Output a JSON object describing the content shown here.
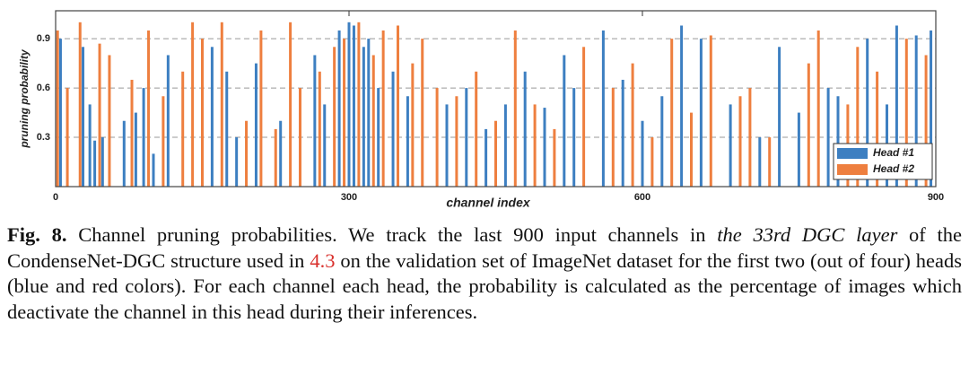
{
  "chart_data": {
    "type": "bar",
    "xlabel": "channel index",
    "ylabel": "pruning probability",
    "xlim": [
      0,
      900
    ],
    "ylim": [
      0,
      1.07
    ],
    "xticks": [
      0,
      300,
      600,
      900
    ],
    "yticks": [
      0.3,
      0.6,
      0.9
    ],
    "grid": true,
    "legend": "lower right",
    "series": [
      {
        "name": "Head #1",
        "color": "#3d7fc1",
        "x": [
          5,
          28,
          35,
          40,
          48,
          70,
          82,
          90,
          100,
          115,
          160,
          175,
          185,
          205,
          230,
          265,
          275,
          290,
          300,
          305,
          315,
          320,
          330,
          345,
          360,
          400,
          420,
          440,
          460,
          480,
          500,
          520,
          530,
          560,
          580,
          600,
          620,
          640,
          660,
          690,
          720,
          740,
          760,
          790,
          800,
          830,
          850,
          860,
          880,
          895
        ],
        "values": [
          0.9,
          0.85,
          0.5,
          0.28,
          0.3,
          0.4,
          0.45,
          0.6,
          0.2,
          0.8,
          0.85,
          0.7,
          0.3,
          0.75,
          0.4,
          0.8,
          0.5,
          0.95,
          1.0,
          0.98,
          0.85,
          0.9,
          0.6,
          0.7,
          0.55,
          0.5,
          0.6,
          0.35,
          0.5,
          0.7,
          0.48,
          0.8,
          0.6,
          0.95,
          0.65,
          0.4,
          0.55,
          0.98,
          0.9,
          0.5,
          0.3,
          0.85,
          0.45,
          0.6,
          0.55,
          0.9,
          0.5,
          0.98,
          0.92,
          0.95
        ]
      },
      {
        "name": "Head #2",
        "color": "#ee7f3f",
        "x": [
          2,
          12,
          25,
          45,
          55,
          78,
          95,
          110,
          130,
          140,
          150,
          170,
          195,
          210,
          225,
          240,
          250,
          270,
          285,
          295,
          310,
          325,
          335,
          350,
          365,
          375,
          390,
          410,
          430,
          450,
          470,
          490,
          510,
          540,
          570,
          590,
          610,
          630,
          650,
          670,
          700,
          710,
          730,
          770,
          780,
          810,
          820,
          840,
          870,
          890
        ],
        "values": [
          0.95,
          0.6,
          1.0,
          0.87,
          0.8,
          0.65,
          0.95,
          0.55,
          0.7,
          1.0,
          0.9,
          1.0,
          0.4,
          0.95,
          0.35,
          1.0,
          0.6,
          0.7,
          0.85,
          0.9,
          1.0,
          0.8,
          0.95,
          0.98,
          0.75,
          0.9,
          0.6,
          0.55,
          0.7,
          0.4,
          0.95,
          0.5,
          0.35,
          0.85,
          0.6,
          0.75,
          0.3,
          0.9,
          0.45,
          0.92,
          0.55,
          0.6,
          0.3,
          0.75,
          0.95,
          0.5,
          0.85,
          0.7,
          0.9,
          0.8
        ]
      }
    ]
  },
  "caption": {
    "label": "Fig. 8.",
    "parts": [
      "Channel pruning probabilities. We track the last 900 input channels in ",
      "the 33rd DGC layer",
      " of the CondenseNet-DGC structure used in ",
      "4.3",
      " on the validation set of ImageNet dataset for the first two (out of four) heads (blue and red colors). For each channel each head, the probability is calculated as the percentage of images which deactivate the channel in this head during their inferences."
    ]
  }
}
